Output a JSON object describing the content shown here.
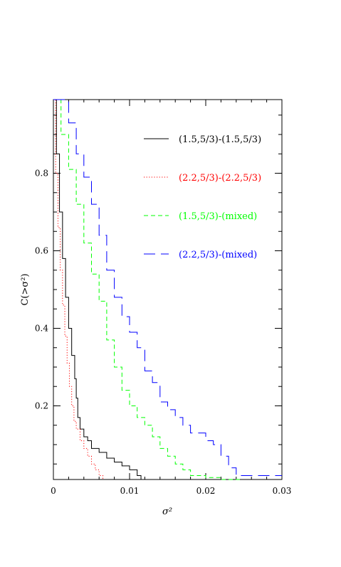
{
  "chart_data": {
    "type": "line",
    "title": "",
    "xlabel": "σ²",
    "ylabel": "C(>σ²)",
    "xlim": [
      0,
      0.03
    ],
    "ylim": [
      0.01,
      0.99
    ],
    "xticks": [
      0,
      0.01,
      0.02,
      0.03
    ],
    "xtick_labels": [
      "0",
      "0.01",
      "0.02",
      "0.03"
    ],
    "yticks": [
      0.2,
      0.4,
      0.6,
      0.8
    ],
    "ytick_labels": [
      "0.2",
      "0.4",
      "0.6",
      "0.8"
    ],
    "grid": false,
    "legend_position": "top-right",
    "series": [
      {
        "name": "(1.5,5/3)-(1.5,5/3)",
        "color": "#000000",
        "dash": "solid",
        "x": [
          0,
          0.0004,
          0.0008,
          0.0012,
          0.0016,
          0.002,
          0.0024,
          0.0028,
          0.003,
          0.0032,
          0.0035,
          0.004,
          0.0045,
          0.005,
          0.006,
          0.007,
          0.008,
          0.009,
          0.01,
          0.011,
          0.0115
        ],
        "y": [
          0.99,
          0.85,
          0.7,
          0.58,
          0.48,
          0.4,
          0.33,
          0.27,
          0.22,
          0.17,
          0.14,
          0.12,
          0.11,
          0.09,
          0.08,
          0.065,
          0.055,
          0.045,
          0.035,
          0.02,
          0.01
        ]
      },
      {
        "name": "(2.2,5/3)-(2.2,5/3)",
        "color": "#ff0000",
        "dash": "dotted",
        "x": [
          0,
          0.0003,
          0.0006,
          0.0009,
          0.0012,
          0.0015,
          0.0018,
          0.0021,
          0.0024,
          0.0027,
          0.003,
          0.0035,
          0.004,
          0.0045,
          0.005,
          0.0055,
          0.006,
          0.0065
        ],
        "y": [
          0.99,
          0.8,
          0.66,
          0.55,
          0.46,
          0.38,
          0.31,
          0.25,
          0.2,
          0.16,
          0.14,
          0.11,
          0.09,
          0.07,
          0.05,
          0.035,
          0.02,
          0.01
        ]
      },
      {
        "name": "(1.5,5/3)-(mixed)",
        "color": "#00ff00",
        "dash": "dashed",
        "x": [
          0,
          0.001,
          0.002,
          0.003,
          0.004,
          0.005,
          0.006,
          0.007,
          0.008,
          0.009,
          0.01,
          0.011,
          0.012,
          0.013,
          0.014,
          0.015,
          0.016,
          0.017,
          0.018,
          0.019,
          0.02,
          0.021,
          0.022,
          0.023,
          0.0245
        ],
        "y": [
          0.99,
          0.9,
          0.81,
          0.72,
          0.62,
          0.54,
          0.47,
          0.37,
          0.3,
          0.24,
          0.2,
          0.17,
          0.15,
          0.12,
          0.09,
          0.07,
          0.05,
          0.035,
          0.02,
          0.02,
          0.015,
          0.015,
          0.01,
          0.01,
          0.01
        ]
      },
      {
        "name": "(2.2,5/3)-(mixed)",
        "color": "#0000ff",
        "dash": "longdash",
        "x": [
          0,
          0.001,
          0.002,
          0.003,
          0.004,
          0.005,
          0.006,
          0.007,
          0.008,
          0.009,
          0.01,
          0.011,
          0.012,
          0.013,
          0.014,
          0.015,
          0.016,
          0.017,
          0.018,
          0.019,
          0.02,
          0.021,
          0.022,
          0.023,
          0.024,
          0.025,
          0.03
        ],
        "y": [
          0.99,
          0.99,
          0.93,
          0.85,
          0.79,
          0.72,
          0.64,
          0.55,
          0.48,
          0.43,
          0.39,
          0.35,
          0.29,
          0.26,
          0.21,
          0.19,
          0.17,
          0.15,
          0.13,
          0.13,
          0.11,
          0.1,
          0.07,
          0.04,
          0.02,
          0.02,
          0.02
        ]
      }
    ]
  }
}
